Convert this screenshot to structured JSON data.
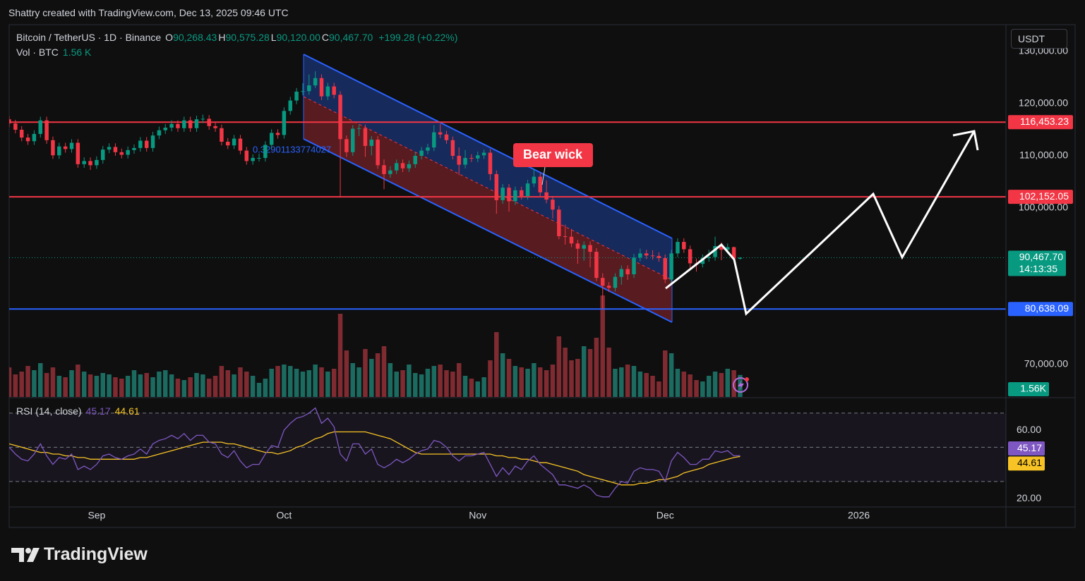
{
  "header": "Shattry created with TradingView.com, Dec 13, 2025 09:46 UTC",
  "currency_button": "USDT",
  "logo": "TradingView",
  "chart_data": {
    "type": "candlestick",
    "legend": {
      "symbol": "Bitcoin / TetherUS · 1D · Binance",
      "items": [
        {
          "key": "O",
          "text": "90,268.43"
        },
        {
          "key": "H",
          "text": "90,575.28"
        },
        {
          "key": "L",
          "text": "90,120.00"
        },
        {
          "key": "C",
          "text": "90,467.70"
        }
      ],
      "change": "+199.28 (+0.22%)"
    },
    "xlim": [
      0,
      160
    ],
    "xticks": [
      {
        "value": 14,
        "label": "Sep"
      },
      {
        "value": 44,
        "label": "Oct"
      },
      {
        "value": 75,
        "label": "Nov"
      },
      {
        "value": 105,
        "label": "Dec"
      },
      {
        "value": 136,
        "label": "2026"
      }
    ],
    "ylim": [
      63784,
      135135
    ],
    "yticks": [
      {
        "value": 130000,
        "label": "130,000.00"
      },
      {
        "value": 120000,
        "label": "120,000.00"
      },
      {
        "value": 110000,
        "label": "110,000.00"
      },
      {
        "value": 100000,
        "label": "100,000.00"
      },
      {
        "value": 70000,
        "label": "70,000.00"
      }
    ],
    "up_color": "#089981",
    "down_color": "#f23645",
    "open": [
      117000,
      116200,
      115000,
      113500,
      112800,
      114200,
      116800,
      113000,
      110100,
      111800,
      111300,
      112500,
      108400,
      109000,
      108200,
      109200,
      111200,
      111700,
      110700,
      110200,
      111100,
      111500,
      112900,
      111500,
      113900,
      114900,
      115400,
      116100,
      115300,
      116800,
      115300,
      117000,
      117100,
      115700,
      115300,
      112700,
      112000,
      113300,
      111000,
      109000,
      109600,
      109600,
      112100,
      114400,
      114000,
      118600,
      120600,
      122300,
      122400,
      123500,
      124900,
      121400,
      123300,
      121700,
      113200,
      110700,
      115200,
      115300,
      111900,
      113100,
      108200,
      106500,
      107200,
      108600,
      107600,
      108400,
      110000,
      111000,
      111600,
      114500,
      114100,
      113000,
      110000,
      108300,
      109600,
      109500,
      110100,
      110600,
      106500,
      101500,
      103900,
      101300,
      103400,
      102300,
      104700,
      106000,
      103000,
      101600,
      99700,
      94600,
      94500,
      93200,
      92200,
      92900,
      91600,
      86600,
      85100,
      84700,
      86800,
      88300,
      87300,
      90500,
      91300,
      90900,
      90800,
      90400,
      86300,
      91300,
      93500,
      92100,
      89400,
      89300,
      90400,
      90600,
      92700,
      92000,
      92500,
      90268.43
    ],
    "high": [
      117600,
      116900,
      115700,
      114200,
      114900,
      117500,
      117500,
      113700,
      112500,
      112500,
      113200,
      113200,
      109700,
      109700,
      109900,
      111900,
      112400,
      112400,
      111400,
      111800,
      112200,
      113600,
      113600,
      114600,
      115600,
      116100,
      116800,
      116800,
      117500,
      117500,
      117700,
      117900,
      117800,
      116400,
      116000,
      113400,
      114000,
      114000,
      111700,
      110300,
      110400,
      112800,
      115100,
      115100,
      119300,
      121300,
      123000,
      123900,
      125600,
      126200,
      125600,
      124000,
      124000,
      122400,
      113900,
      115900,
      116000,
      116000,
      113800,
      113800,
      109300,
      108000,
      109300,
      109300,
      109100,
      110700,
      111700,
      112300,
      115900,
      116100,
      114800,
      113700,
      111600,
      111100,
      110300,
      110800,
      111200,
      111300,
      107200,
      104600,
      104600,
      104100,
      104100,
      105400,
      107500,
      106700,
      105300,
      102300,
      100400,
      96800,
      96000,
      93900,
      93600,
      93600,
      92300,
      87500,
      85800,
      87500,
      89000,
      89000,
      91200,
      92200,
      92000,
      91900,
      91500,
      91100,
      92000,
      94200,
      94200,
      92800,
      90300,
      91100,
      92000,
      94500,
      93400,
      93200,
      92600,
      90575.28
    ],
    "low": [
      115500,
      114300,
      112800,
      112100,
      112100,
      113500,
      112300,
      109400,
      109400,
      110600,
      110600,
      107700,
      107700,
      107300,
      107500,
      108500,
      110500,
      110000,
      109500,
      109500,
      110400,
      110800,
      110800,
      110800,
      113200,
      114200,
      114700,
      114600,
      114600,
      114600,
      114600,
      116300,
      115000,
      114600,
      112000,
      111300,
      111300,
      110300,
      108300,
      108300,
      108900,
      108900,
      111400,
      113300,
      113300,
      117900,
      119900,
      121600,
      121700,
      123000,
      120700,
      120700,
      121000,
      102000,
      109800,
      110000,
      113800,
      109800,
      110100,
      107500,
      103600,
      105800,
      106500,
      106900,
      106900,
      107700,
      109300,
      110300,
      110900,
      113400,
      112300,
      109300,
      106300,
      107600,
      108800,
      108800,
      109400,
      105300,
      98900,
      100800,
      99300,
      100600,
      101600,
      101600,
      104000,
      102300,
      100900,
      98000,
      94000,
      93000,
      92500,
      89300,
      89900,
      88600,
      86000,
      80600,
      83900,
      84000,
      85300,
      86200,
      86600,
      89800,
      90200,
      90100,
      89700,
      85600,
      85600,
      90600,
      91400,
      88200,
      87800,
      88600,
      89700,
      89900,
      90000,
      91300,
      89800,
      90120
    ],
    "close": [
      116200,
      115000,
      113500,
      112800,
      114200,
      116800,
      113000,
      110100,
      111800,
      111300,
      112500,
      108400,
      109000,
      108200,
      109200,
      111200,
      111700,
      110700,
      110200,
      111100,
      111500,
      112900,
      111500,
      113900,
      114900,
      115400,
      116100,
      115300,
      116800,
      115300,
      117000,
      117100,
      115700,
      115300,
      112700,
      112000,
      113300,
      111000,
      109000,
      109600,
      109600,
      112100,
      114400,
      114000,
      118600,
      120600,
      122300,
      122400,
      123500,
      124900,
      121400,
      123300,
      121700,
      113200,
      110700,
      115200,
      115300,
      111900,
      113100,
      108200,
      106500,
      107200,
      108600,
      107600,
      108400,
      110000,
      111000,
      111600,
      114500,
      114100,
      113000,
      110000,
      108300,
      109600,
      109500,
      110100,
      110600,
      106500,
      101500,
      103900,
      101300,
      103400,
      102300,
      104700,
      106000,
      103000,
      101600,
      99700,
      94600,
      94500,
      93200,
      92200,
      92900,
      91600,
      86600,
      85100,
      84700,
      86800,
      88300,
      87300,
      90500,
      91300,
      90900,
      90800,
      90400,
      86300,
      91300,
      93500,
      92100,
      89400,
      89300,
      90400,
      90600,
      92700,
      92000,
      92500,
      90300,
      90467.7
    ],
    "levels": [
      {
        "value": 116453.23,
        "label": "116,453.23",
        "color": "#f23645"
      },
      {
        "value": 102152.05,
        "label": "102,152.05",
        "color": "#f23645"
      },
      {
        "value": 80638.09,
        "label": "80,638.09",
        "color": "#2962ff"
      }
    ],
    "last_price": {
      "value": 90467.7,
      "label": "90,467.70",
      "countdown": "14:13:35"
    },
    "annotation": "Bear wick",
    "channel_label": "0.32901133774027",
    "volume": {
      "name": "Vol · BTC",
      "last_label": "1.56 K",
      "tag_label": "1.56K",
      "ylim": [
        0,
        26400
      ],
      "up_color": "#1c6b61",
      "down_color": "#7f2b31",
      "values": [
        2100,
        1600,
        1800,
        2200,
        1900,
        2400,
        1700,
        2100,
        1500,
        1400,
        1900,
        2300,
        1800,
        1600,
        1500,
        1700,
        1600,
        1400,
        1300,
        1500,
        1900,
        1600,
        1700,
        1400,
        1800,
        1900,
        1600,
        1300,
        1200,
        1400,
        1700,
        1600,
        1300,
        1500,
        2200,
        1900,
        1600,
        2100,
        1800,
        1500,
        1000,
        1300,
        2000,
        2200,
        2300,
        2200,
        2000,
        1800,
        1900,
        2300,
        2100,
        1800,
        2000,
        5900,
        3300,
        2400,
        2100,
        3400,
        2700,
        3100,
        3600,
        2400,
        1800,
        1900,
        2300,
        1700,
        1600,
        2000,
        2200,
        2300,
        1900,
        1800,
        2400,
        1500,
        1300,
        1100,
        1400,
        2600,
        4600,
        3100,
        2700,
        2200,
        2100,
        2000,
        2400,
        2100,
        1900,
        2300,
        4300,
        3500,
        2600,
        2700,
        3600,
        3400,
        4200,
        7200,
        3500,
        2000,
        2100,
        2300,
        2200,
        1800,
        1700,
        1500,
        1100,
        3300,
        3100,
        2000,
        1800,
        1600,
        1200,
        1100,
        1500,
        1800,
        1700,
        2000,
        1900,
        1560
      ]
    },
    "rsi": {
      "name": "RSI (14, close)",
      "ylim": [
        15.5,
        78.6
      ],
      "yticks": [
        {
          "value": 60,
          "label": "60.00"
        },
        {
          "value": 20,
          "label": "20.00"
        }
      ],
      "bands": [
        70,
        50,
        30
      ],
      "series": [
        {
          "color": "#7e57c2",
          "values": [
            50,
            46,
            43,
            42,
            46,
            52,
            45,
            40,
            44,
            43,
            46,
            37,
            39,
            37,
            40,
            45,
            46,
            44,
            43,
            45,
            46,
            49,
            46,
            52,
            54,
            55,
            57,
            55,
            58,
            54,
            57,
            57,
            53,
            52,
            46,
            44,
            48,
            42,
            38,
            40,
            40,
            46,
            51,
            50,
            60,
            64,
            67,
            68,
            70,
            73,
            64,
            67,
            62,
            46,
            42,
            52,
            52,
            46,
            49,
            40,
            38,
            40,
            43,
            41,
            43,
            46,
            48,
            49,
            54,
            53,
            50,
            45,
            42,
            45,
            45,
            46,
            47,
            40,
            33,
            38,
            34,
            39,
            37,
            42,
            45,
            40,
            37,
            34,
            28,
            28,
            27,
            26,
            28,
            26,
            22,
            21,
            21,
            26,
            30,
            29,
            36,
            38,
            37,
            37,
            36,
            30,
            42,
            47,
            44,
            40,
            40,
            43,
            43,
            48,
            47,
            48,
            45,
            45.17
          ]
        },
        {
          "color": "#f7c325",
          "values": [
            52,
            51,
            50,
            49,
            48,
            47,
            47,
            46,
            46,
            45,
            45,
            44,
            44,
            43,
            43,
            43,
            43,
            43,
            43,
            43,
            43,
            44,
            44,
            45,
            46,
            47,
            48,
            49,
            50,
            51,
            52,
            53,
            53,
            53,
            53,
            52,
            52,
            51,
            50,
            49,
            48,
            47,
            47,
            46,
            47,
            48,
            50,
            51,
            53,
            55,
            56,
            58,
            59,
            59,
            59,
            59,
            59,
            59,
            58,
            57,
            56,
            55,
            53,
            51,
            49,
            47,
            46,
            46,
            46,
            46,
            46,
            46,
            46,
            46,
            46,
            46,
            46,
            46,
            45,
            45,
            44,
            44,
            43,
            43,
            42,
            41,
            41,
            40,
            39,
            38,
            37,
            36,
            34,
            33,
            32,
            31,
            30,
            29,
            28,
            28,
            28,
            29,
            29,
            30,
            31,
            31,
            32,
            33,
            35,
            36,
            37,
            38,
            40,
            41,
            42,
            43,
            44,
            44.61
          ]
        }
      ]
    }
  }
}
